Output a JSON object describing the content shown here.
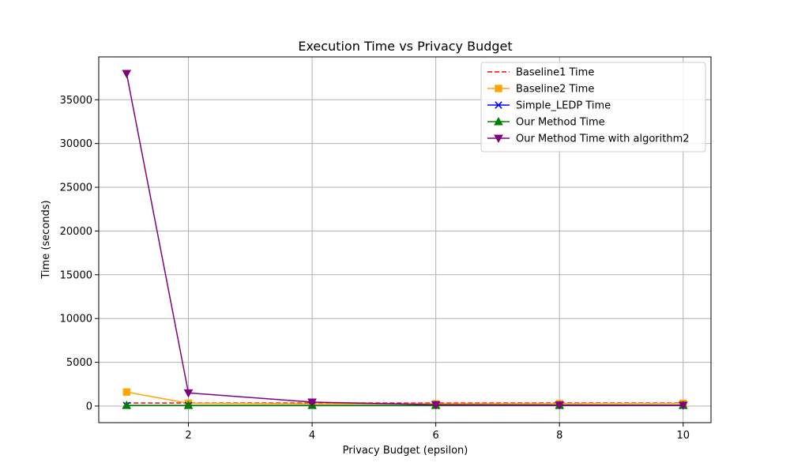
{
  "chart_data": {
    "type": "line",
    "title": "Execution Time vs Privacy Budget",
    "xlabel": "Privacy Budget (epsilon)",
    "ylabel": "Time (seconds)",
    "xlim": [
      0.55,
      10.45
    ],
    "ylim": [
      -1900,
      39900
    ],
    "xticks": [
      2,
      4,
      6,
      8,
      10
    ],
    "yticks": [
      0,
      5000,
      10000,
      15000,
      20000,
      25000,
      30000,
      35000
    ],
    "grid": true,
    "legend_position": "top-right",
    "x": [
      1,
      2,
      4,
      6,
      8,
      10
    ],
    "series": [
      {
        "name": "Baseline1 Time",
        "color": "#ff0000",
        "linestyle": "dashed",
        "marker": "none",
        "values": [
          350,
          350,
          350,
          350,
          350,
          350
        ]
      },
      {
        "name": "Baseline2 Time",
        "color": "#ffa500",
        "linestyle": "solid",
        "marker": "square",
        "values": [
          1600,
          320,
          250,
          250,
          280,
          300
        ]
      },
      {
        "name": "Simple_LEDP Time",
        "color": "#0000ff",
        "linestyle": "solid",
        "marker": "x",
        "values": [
          60,
          60,
          60,
          60,
          60,
          60
        ]
      },
      {
        "name": "Our Method Time",
        "color": "#008000",
        "linestyle": "solid",
        "marker": "triangle-up",
        "values": [
          80,
          80,
          80,
          80,
          80,
          80
        ]
      },
      {
        "name": "Our Method Time with algorithm2",
        "color": "#800080",
        "linestyle": "solid",
        "marker": "triangle-down",
        "values": [
          38000,
          1500,
          450,
          150,
          120,
          100
        ]
      }
    ]
  }
}
